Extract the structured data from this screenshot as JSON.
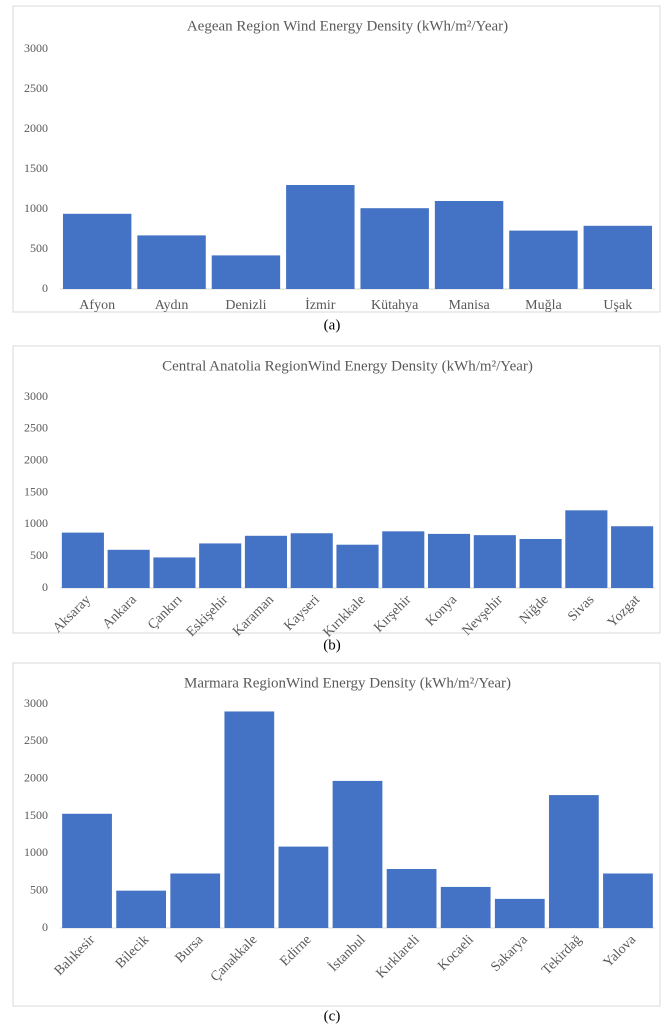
{
  "chart_data": [
    {
      "type": "bar",
      "title": "Aegean Region Wind Energy Density (kWh/m²/Year)",
      "caption": "(a)",
      "categories": [
        "Afyon",
        "Aydın",
        "Denizli",
        "İzmir",
        "Kütahya",
        "Manisa",
        "Muğla",
        "Uşak"
      ],
      "values": [
        940,
        670,
        420,
        1300,
        1010,
        1100,
        730,
        790
      ],
      "color": "#4472c4",
      "ylim": [
        0,
        3000
      ],
      "yticks": [
        0,
        500,
        1000,
        1500,
        2000,
        2500,
        3000
      ],
      "label_rotation": 0
    },
    {
      "type": "bar",
      "title": "Central Anatolia RegionWind Energy Density (kWh/m²/Year)",
      "caption": "(b)",
      "categories": [
        "Aksaray",
        "Ankara",
        "Çankırı",
        "Eskişehir",
        "Karaman",
        "Kayseri",
        "Kırıkkale",
        "Kırşehir",
        "Konya",
        "Nevşehir",
        "Niğde",
        "Sivas",
        "Yozgat"
      ],
      "values": [
        870,
        600,
        480,
        700,
        820,
        860,
        680,
        890,
        850,
        830,
        770,
        1220,
        970
      ],
      "color": "#4472c4",
      "ylim": [
        0,
        3000
      ],
      "yticks": [
        0,
        500,
        1000,
        1500,
        2000,
        2500,
        3000
      ],
      "label_rotation": -45
    },
    {
      "type": "bar",
      "title": "Marmara RegionWind Energy Density (kWh/m²/Year)",
      "caption": "(c)",
      "categories": [
        "Balıkesir",
        "Bilecik",
        "Bursa",
        "Çanakkale",
        "Edirne",
        "İstanbul",
        "Kırklareli",
        "Kocaeli",
        "Sakarya",
        "Tekirdağ",
        "Yalova"
      ],
      "values": [
        1530,
        500,
        730,
        2900,
        1090,
        1970,
        790,
        550,
        390,
        1780,
        730
      ],
      "color": "#4472c4",
      "ylim": [
        0,
        3000
      ],
      "yticks": [
        0,
        500,
        1000,
        1500,
        2000,
        2500,
        3000
      ],
      "label_rotation": -45
    }
  ]
}
